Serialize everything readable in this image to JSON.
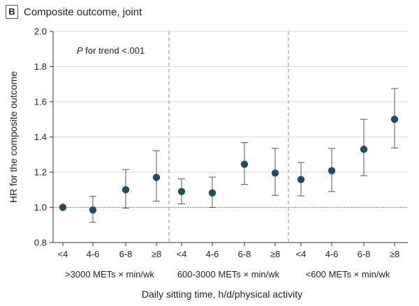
{
  "panel": {
    "letter": "B",
    "title": "Composite outcome, joint"
  },
  "chart_data": {
    "type": "scatter",
    "title": "Composite outcome, joint",
    "ylabel": "HR for the composite outcome",
    "xlabel": "Daily sitting time, h/d/physical activity",
    "ylim": [
      0.8,
      2.0
    ],
    "yticks": [
      "0.8",
      "1.0",
      "1.2",
      "1.4",
      "1.6",
      "1.8",
      "2.0"
    ],
    "reference_line": 1.0,
    "annotation": {
      "italic": "P",
      "text": " for trend <.001"
    },
    "groups": [
      {
        "name": ">3000 METs × min/wk",
        "categories": [
          "<4",
          "4-6",
          "6-8",
          "≥8"
        ],
        "hr": [
          1.0,
          0.985,
          1.1,
          1.17
        ],
        "lower": [
          1.0,
          0.915,
          0.995,
          1.035
        ],
        "upper": [
          1.0,
          1.062,
          1.215,
          1.322
        ]
      },
      {
        "name": "600-3000 METs × min/wk",
        "categories": [
          "<4",
          "4-6",
          "6-8",
          "≥8"
        ],
        "hr": [
          1.09,
          1.082,
          1.245,
          1.195
        ],
        "lower": [
          1.02,
          1.0,
          1.13,
          1.068
        ],
        "upper": [
          1.162,
          1.172,
          1.368,
          1.335
        ]
      },
      {
        "name": "<600 METs × min/wk",
        "categories": [
          "<4",
          "4-6",
          "6-8",
          "≥8"
        ],
        "hr": [
          1.158,
          1.208,
          1.33,
          1.5
        ],
        "lower": [
          1.065,
          1.09,
          1.18,
          1.338
        ],
        "upper": [
          1.255,
          1.335,
          1.5,
          1.675
        ]
      }
    ],
    "colors": {
      "point": "#1f4e5f",
      "error_bar": "#555555",
      "axis": "#333333",
      "grid": "#d9d9d9",
      "separator": "#888888"
    }
  }
}
